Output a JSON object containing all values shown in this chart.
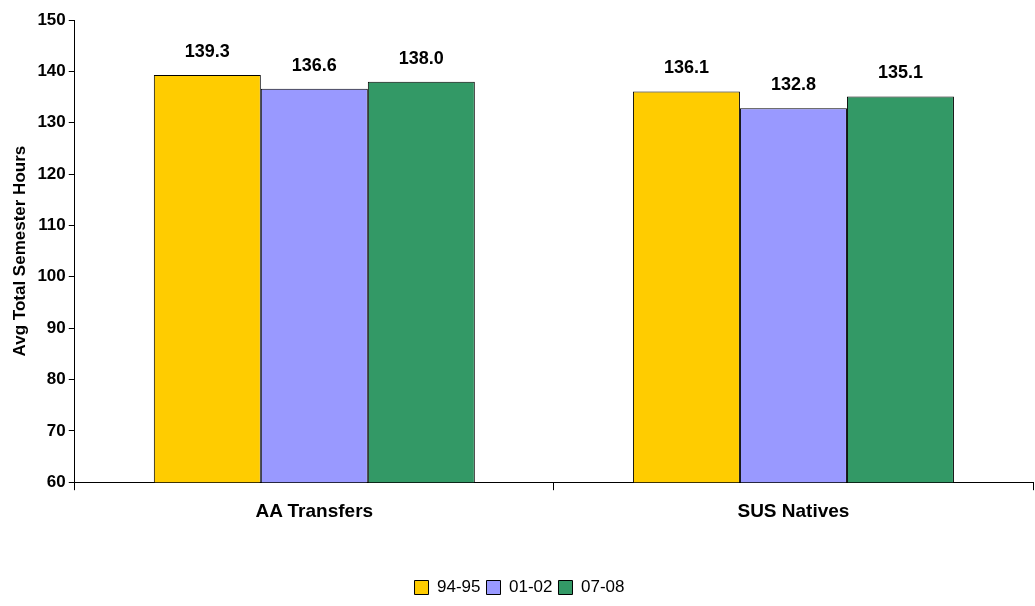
{
  "chart_data": {
    "type": "bar",
    "ylabel": "Avg Total Semester Hours",
    "categories": [
      "AA Transfers",
      "SUS Natives"
    ],
    "series": [
      {
        "name": "94-95",
        "color": "#ffcc00",
        "values": [
          139.3,
          136.1
        ],
        "value_labels": [
          "139.3",
          "136.1"
        ]
      },
      {
        "name": "01-02",
        "color": "#9999ff",
        "values": [
          136.6,
          132.8
        ],
        "value_labels": [
          "136.6",
          "132.8"
        ]
      },
      {
        "name": "07-08",
        "color": "#339966",
        "values": [
          138.0,
          135.1
        ],
        "value_labels": [
          "138.0",
          "135.1"
        ]
      }
    ],
    "ylim": [
      60,
      150
    ],
    "yticks": [
      60,
      70,
      80,
      90,
      100,
      110,
      120,
      130,
      140,
      150
    ],
    "legend": "bottom"
  }
}
